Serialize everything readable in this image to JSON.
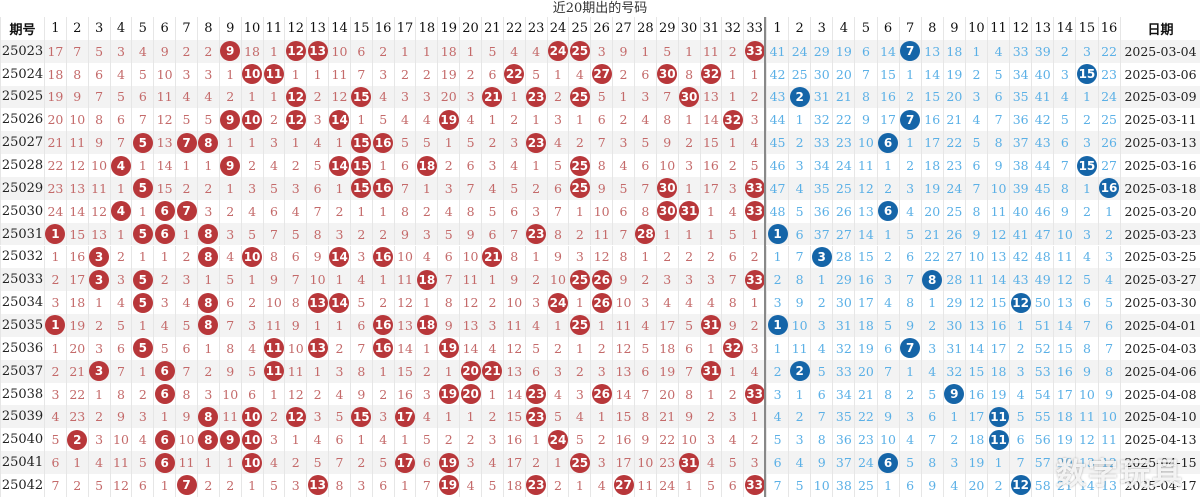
{
  "title": "近20期出的号码",
  "headers": {
    "period": "期号",
    "red": [
      "1",
      "2",
      "3",
      "4",
      "5",
      "6",
      "7",
      "8",
      "9",
      "10",
      "11",
      "12",
      "13",
      "14",
      "15",
      "16",
      "17",
      "18",
      "19",
      "20",
      "21",
      "22",
      "23",
      "24",
      "25",
      "26",
      "27",
      "28",
      "29",
      "30",
      "31",
      "32",
      "33"
    ],
    "blue": [
      "1",
      "2",
      "3",
      "4",
      "5",
      "6",
      "7",
      "8",
      "9",
      "10",
      "11",
      "12",
      "13",
      "14",
      "15",
      "16"
    ],
    "date": "日期"
  },
  "rows": [
    {
      "period": "25023",
      "date": "2025-03-04",
      "red": [
        17,
        7,
        5,
        3,
        4,
        9,
        2,
        2,
        "●9",
        18,
        1,
        "●12",
        "●13",
        10,
        6,
        2,
        1,
        1,
        18,
        1,
        5,
        4,
        4,
        "●24",
        "●25",
        3,
        9,
        1,
        5,
        1,
        11,
        2,
        "●33"
      ],
      "blue": [
        41,
        24,
        29,
        19,
        6,
        14,
        "●7",
        13,
        18,
        1,
        4,
        33,
        39,
        2,
        3,
        22
      ]
    },
    {
      "period": "25024",
      "date": "2025-03-06",
      "red": [
        18,
        8,
        6,
        4,
        5,
        10,
        3,
        3,
        1,
        "●10",
        "●11",
        1,
        1,
        11,
        7,
        3,
        2,
        2,
        19,
        2,
        6,
        "●22",
        5,
        1,
        4,
        "●27",
        2,
        6,
        "●30",
        8,
        "●32",
        1,
        1
      ],
      "blue": [
        42,
        25,
        30,
        20,
        7,
        15,
        1,
        14,
        19,
        2,
        5,
        34,
        40,
        3,
        "●15",
        23
      ]
    },
    {
      "period": "25025",
      "date": "2025-03-09",
      "red": [
        19,
        9,
        7,
        5,
        6,
        11,
        4,
        4,
        2,
        1,
        1,
        "●12",
        2,
        12,
        "●15",
        4,
        3,
        3,
        20,
        3,
        "●21",
        1,
        "●23",
        2,
        "●25",
        5,
        1,
        3,
        7,
        "●30",
        13,
        1,
        2
      ],
      "blue": [
        43,
        "●2",
        31,
        21,
        8,
        16,
        2,
        15,
        20,
        3,
        6,
        35,
        41,
        4,
        1,
        24
      ]
    },
    {
      "period": "25026",
      "date": "2025-03-11",
      "red": [
        20,
        10,
        8,
        6,
        7,
        12,
        5,
        5,
        "●9",
        "●10",
        2,
        "●12",
        3,
        "●14",
        1,
        5,
        4,
        4,
        "●19",
        4,
        1,
        2,
        1,
        3,
        1,
        6,
        2,
        4,
        8,
        1,
        14,
        "●32",
        3
      ],
      "blue": [
        44,
        1,
        32,
        22,
        9,
        17,
        "●7",
        16,
        21,
        4,
        7,
        36,
        42,
        5,
        2,
        25
      ]
    },
    {
      "period": "25027",
      "date": "2025-03-13",
      "red": [
        21,
        11,
        9,
        7,
        "●5",
        13,
        "●7",
        "●8",
        1,
        1,
        3,
        1,
        4,
        1,
        "●15",
        "●16",
        5,
        5,
        1,
        5,
        2,
        3,
        "●23",
        4,
        2,
        7,
        3,
        5,
        9,
        2,
        15,
        1,
        4
      ],
      "blue": [
        45,
        2,
        33,
        23,
        10,
        "●6",
        1,
        17,
        22,
        5,
        8,
        37,
        43,
        6,
        3,
        26
      ]
    },
    {
      "period": "25028",
      "date": "2025-03-16",
      "red": [
        22,
        12,
        10,
        "●4",
        1,
        14,
        1,
        1,
        "●9",
        2,
        4,
        2,
        5,
        "●14",
        "●15",
        1,
        6,
        "●18",
        2,
        6,
        3,
        4,
        1,
        5,
        "●25",
        8,
        4,
        6,
        10,
        3,
        16,
        2,
        5
      ],
      "blue": [
        46,
        3,
        34,
        24,
        11,
        1,
        2,
        18,
        23,
        6,
        9,
        38,
        44,
        7,
        "●15",
        27
      ]
    },
    {
      "period": "25029",
      "date": "2025-03-18",
      "red": [
        23,
        13,
        11,
        1,
        "●5",
        15,
        2,
        2,
        1,
        3,
        5,
        3,
        6,
        1,
        "●15",
        "●16",
        7,
        1,
        3,
        7,
        4,
        5,
        2,
        6,
        "●25",
        9,
        5,
        7,
        "●30",
        1,
        17,
        3,
        "●33"
      ],
      "blue": [
        47,
        4,
        35,
        25,
        12,
        2,
        3,
        19,
        24,
        7,
        10,
        39,
        45,
        8,
        1,
        "●16"
      ]
    },
    {
      "period": "25030",
      "date": "2025-03-20",
      "red": [
        24,
        14,
        12,
        "●4",
        1,
        "●6",
        "●7",
        3,
        2,
        4,
        6,
        4,
        7,
        2,
        1,
        1,
        8,
        2,
        4,
        8,
        5,
        6,
        3,
        7,
        1,
        10,
        6,
        8,
        "●30",
        "●31",
        1,
        4,
        "●33"
      ],
      "blue": [
        48,
        5,
        36,
        26,
        13,
        "●6",
        4,
        20,
        25,
        8,
        11,
        40,
        46,
        9,
        2,
        1
      ]
    },
    {
      "period": "25031",
      "date": "2025-03-23",
      "red": [
        "●1",
        15,
        13,
        1,
        "●5",
        "●6",
        1,
        "●8",
        3,
        5,
        7,
        5,
        8,
        3,
        2,
        2,
        9,
        3,
        5,
        9,
        6,
        7,
        "●23",
        8,
        2,
        11,
        7,
        "●28",
        1,
        1,
        1,
        5,
        1
      ],
      "blue": [
        "●1",
        6,
        37,
        27,
        14,
        1,
        5,
        21,
        26,
        9,
        12,
        41,
        47,
        10,
        3,
        2
      ]
    },
    {
      "period": "25032",
      "date": "2025-03-25",
      "red": [
        1,
        16,
        "●3",
        2,
        1,
        1,
        2,
        "●8",
        4,
        "●10",
        8,
        6,
        9,
        "●14",
        3,
        "●16",
        10,
        4,
        6,
        10,
        "●21",
        8,
        1,
        9,
        3,
        12,
        8,
        1,
        2,
        2,
        2,
        6,
        2
      ],
      "blue": [
        1,
        7,
        "●3",
        28,
        15,
        2,
        6,
        22,
        27,
        10,
        13,
        42,
        48,
        11,
        4,
        3
      ]
    },
    {
      "period": "25033",
      "date": "2025-03-27",
      "red": [
        2,
        17,
        "●3",
        3,
        "●5",
        2,
        3,
        1,
        5,
        1,
        9,
        7,
        10,
        1,
        4,
        1,
        11,
        "●18",
        7,
        11,
        1,
        9,
        2,
        10,
        "●25",
        "●26",
        9,
        2,
        3,
        3,
        3,
        7,
        "●33"
      ],
      "blue": [
        2,
        8,
        1,
        29,
        16,
        3,
        7,
        "●8",
        28,
        11,
        14,
        43,
        49,
        12,
        5,
        4
      ]
    },
    {
      "period": "25034",
      "date": "2025-03-30",
      "red": [
        3,
        18,
        1,
        4,
        "●5",
        3,
        4,
        "●8",
        6,
        2,
        10,
        8,
        "●13",
        "●14",
        5,
        2,
        12,
        1,
        8,
        12,
        2,
        10,
        3,
        "●24",
        1,
        "●26",
        10,
        3,
        4,
        4,
        4,
        8,
        1
      ],
      "blue": [
        3,
        9,
        2,
        30,
        17,
        4,
        8,
        1,
        29,
        12,
        15,
        "●12",
        50,
        13,
        6,
        5
      ]
    },
    {
      "period": "25035",
      "date": "2025-04-01",
      "red": [
        "●1",
        19,
        2,
        5,
        1,
        4,
        5,
        "●8",
        7,
        3,
        11,
        9,
        1,
        1,
        6,
        "●16",
        13,
        "●18",
        9,
        13,
        3,
        11,
        4,
        1,
        "●25",
        1,
        11,
        4,
        17,
        5,
        "●31",
        9,
        2
      ],
      "blue": [
        "●1",
        10,
        3,
        31,
        18,
        5,
        9,
        2,
        30,
        13,
        16,
        1,
        51,
        14,
        7,
        6
      ]
    },
    {
      "period": "25036",
      "date": "2025-04-03",
      "red": [
        1,
        20,
        3,
        6,
        "●5",
        5,
        6,
        1,
        8,
        4,
        "●11",
        10,
        "●13",
        2,
        7,
        "●16",
        14,
        1,
        "●19",
        14,
        4,
        12,
        5,
        2,
        1,
        2,
        12,
        5,
        18,
        6,
        1,
        "●32",
        3
      ],
      "blue": [
        1,
        11,
        4,
        32,
        19,
        6,
        "●7",
        3,
        31,
        14,
        17,
        2,
        52,
        15,
        8,
        7
      ]
    },
    {
      "period": "25037",
      "date": "2025-04-06",
      "red": [
        2,
        21,
        "●3",
        7,
        1,
        "●6",
        7,
        2,
        9,
        5,
        "●11",
        11,
        1,
        3,
        8,
        1,
        15,
        2,
        1,
        "●20",
        "●21",
        13,
        6,
        3,
        2,
        3,
        13,
        6,
        19,
        7,
        "●31",
        1,
        4
      ],
      "blue": [
        2,
        "●2",
        5,
        33,
        20,
        7,
        1,
        4,
        32,
        15,
        18,
        3,
        53,
        16,
        9,
        8
      ]
    },
    {
      "period": "25038",
      "date": "2025-04-08",
      "red": [
        3,
        22,
        1,
        8,
        2,
        "●6",
        8,
        3,
        10,
        6,
        1,
        12,
        2,
        4,
        9,
        2,
        16,
        3,
        "●19",
        "●20",
        1,
        14,
        "●23",
        4,
        3,
        "●26",
        14,
        7,
        20,
        8,
        1,
        2,
        "●33"
      ],
      "blue": [
        3,
        1,
        6,
        34,
        21,
        8,
        2,
        5,
        "●9",
        16,
        19,
        4,
        54,
        17,
        10,
        9
      ]
    },
    {
      "period": "25039",
      "date": "2025-04-10",
      "red": [
        4,
        23,
        2,
        9,
        3,
        1,
        9,
        "●8",
        11,
        "●10",
        2,
        "●12",
        3,
        5,
        "●15",
        3,
        "●17",
        4,
        1,
        1,
        2,
        15,
        "●23",
        5,
        4,
        1,
        15,
        8,
        21,
        9,
        2,
        3,
        1
      ],
      "blue": [
        4,
        2,
        7,
        35,
        22,
        9,
        3,
        6,
        1,
        17,
        "●11",
        5,
        55,
        18,
        11,
        10
      ]
    },
    {
      "period": "25040",
      "date": "2025-04-13",
      "red": [
        5,
        "●2",
        3,
        10,
        4,
        "●6",
        10,
        "●8",
        "●9",
        "●10",
        3,
        1,
        4,
        6,
        1,
        4,
        1,
        5,
        2,
        2,
        3,
        16,
        1,
        "●24",
        5,
        2,
        16,
        9,
        22,
        10,
        3,
        4,
        2
      ],
      "blue": [
        5,
        3,
        8,
        36,
        23,
        10,
        4,
        7,
        2,
        18,
        "●11",
        6,
        56,
        19,
        12,
        11
      ]
    },
    {
      "period": "25041",
      "date": "2025-04-15",
      "red": [
        6,
        1,
        4,
        11,
        5,
        "●6",
        11,
        1,
        1,
        "●10",
        4,
        2,
        5,
        7,
        2,
        5,
        "●17",
        6,
        "●19",
        3,
        4,
        17,
        2,
        1,
        "●25",
        3,
        17,
        10,
        23,
        "●31",
        4,
        5,
        3
      ],
      "blue": [
        6,
        4,
        9,
        37,
        24,
        "●6",
        5,
        8,
        3,
        19,
        1,
        7,
        57,
        20,
        13,
        12
      ]
    },
    {
      "period": "25042",
      "date": "2025-04-17",
      "red": [
        7,
        2,
        5,
        12,
        6,
        1,
        "●7",
        2,
        2,
        1,
        5,
        3,
        "●13",
        8,
        3,
        6,
        1,
        7,
        "●19",
        4,
        5,
        18,
        "●23",
        2,
        1,
        4,
        "●27",
        11,
        24,
        1,
        5,
        6,
        "●33"
      ],
      "blue": [
        7,
        5,
        10,
        38,
        25,
        1,
        6,
        9,
        4,
        20,
        2,
        "●12",
        58,
        21,
        14,
        13
      ]
    }
  ],
  "watermark": "数字玩具",
  "colors": {
    "red_ball": "#b8373a",
    "blue_ball": "#1565a8",
    "red_text": "#c46a6a",
    "blue_text": "#5bb0e6"
  }
}
